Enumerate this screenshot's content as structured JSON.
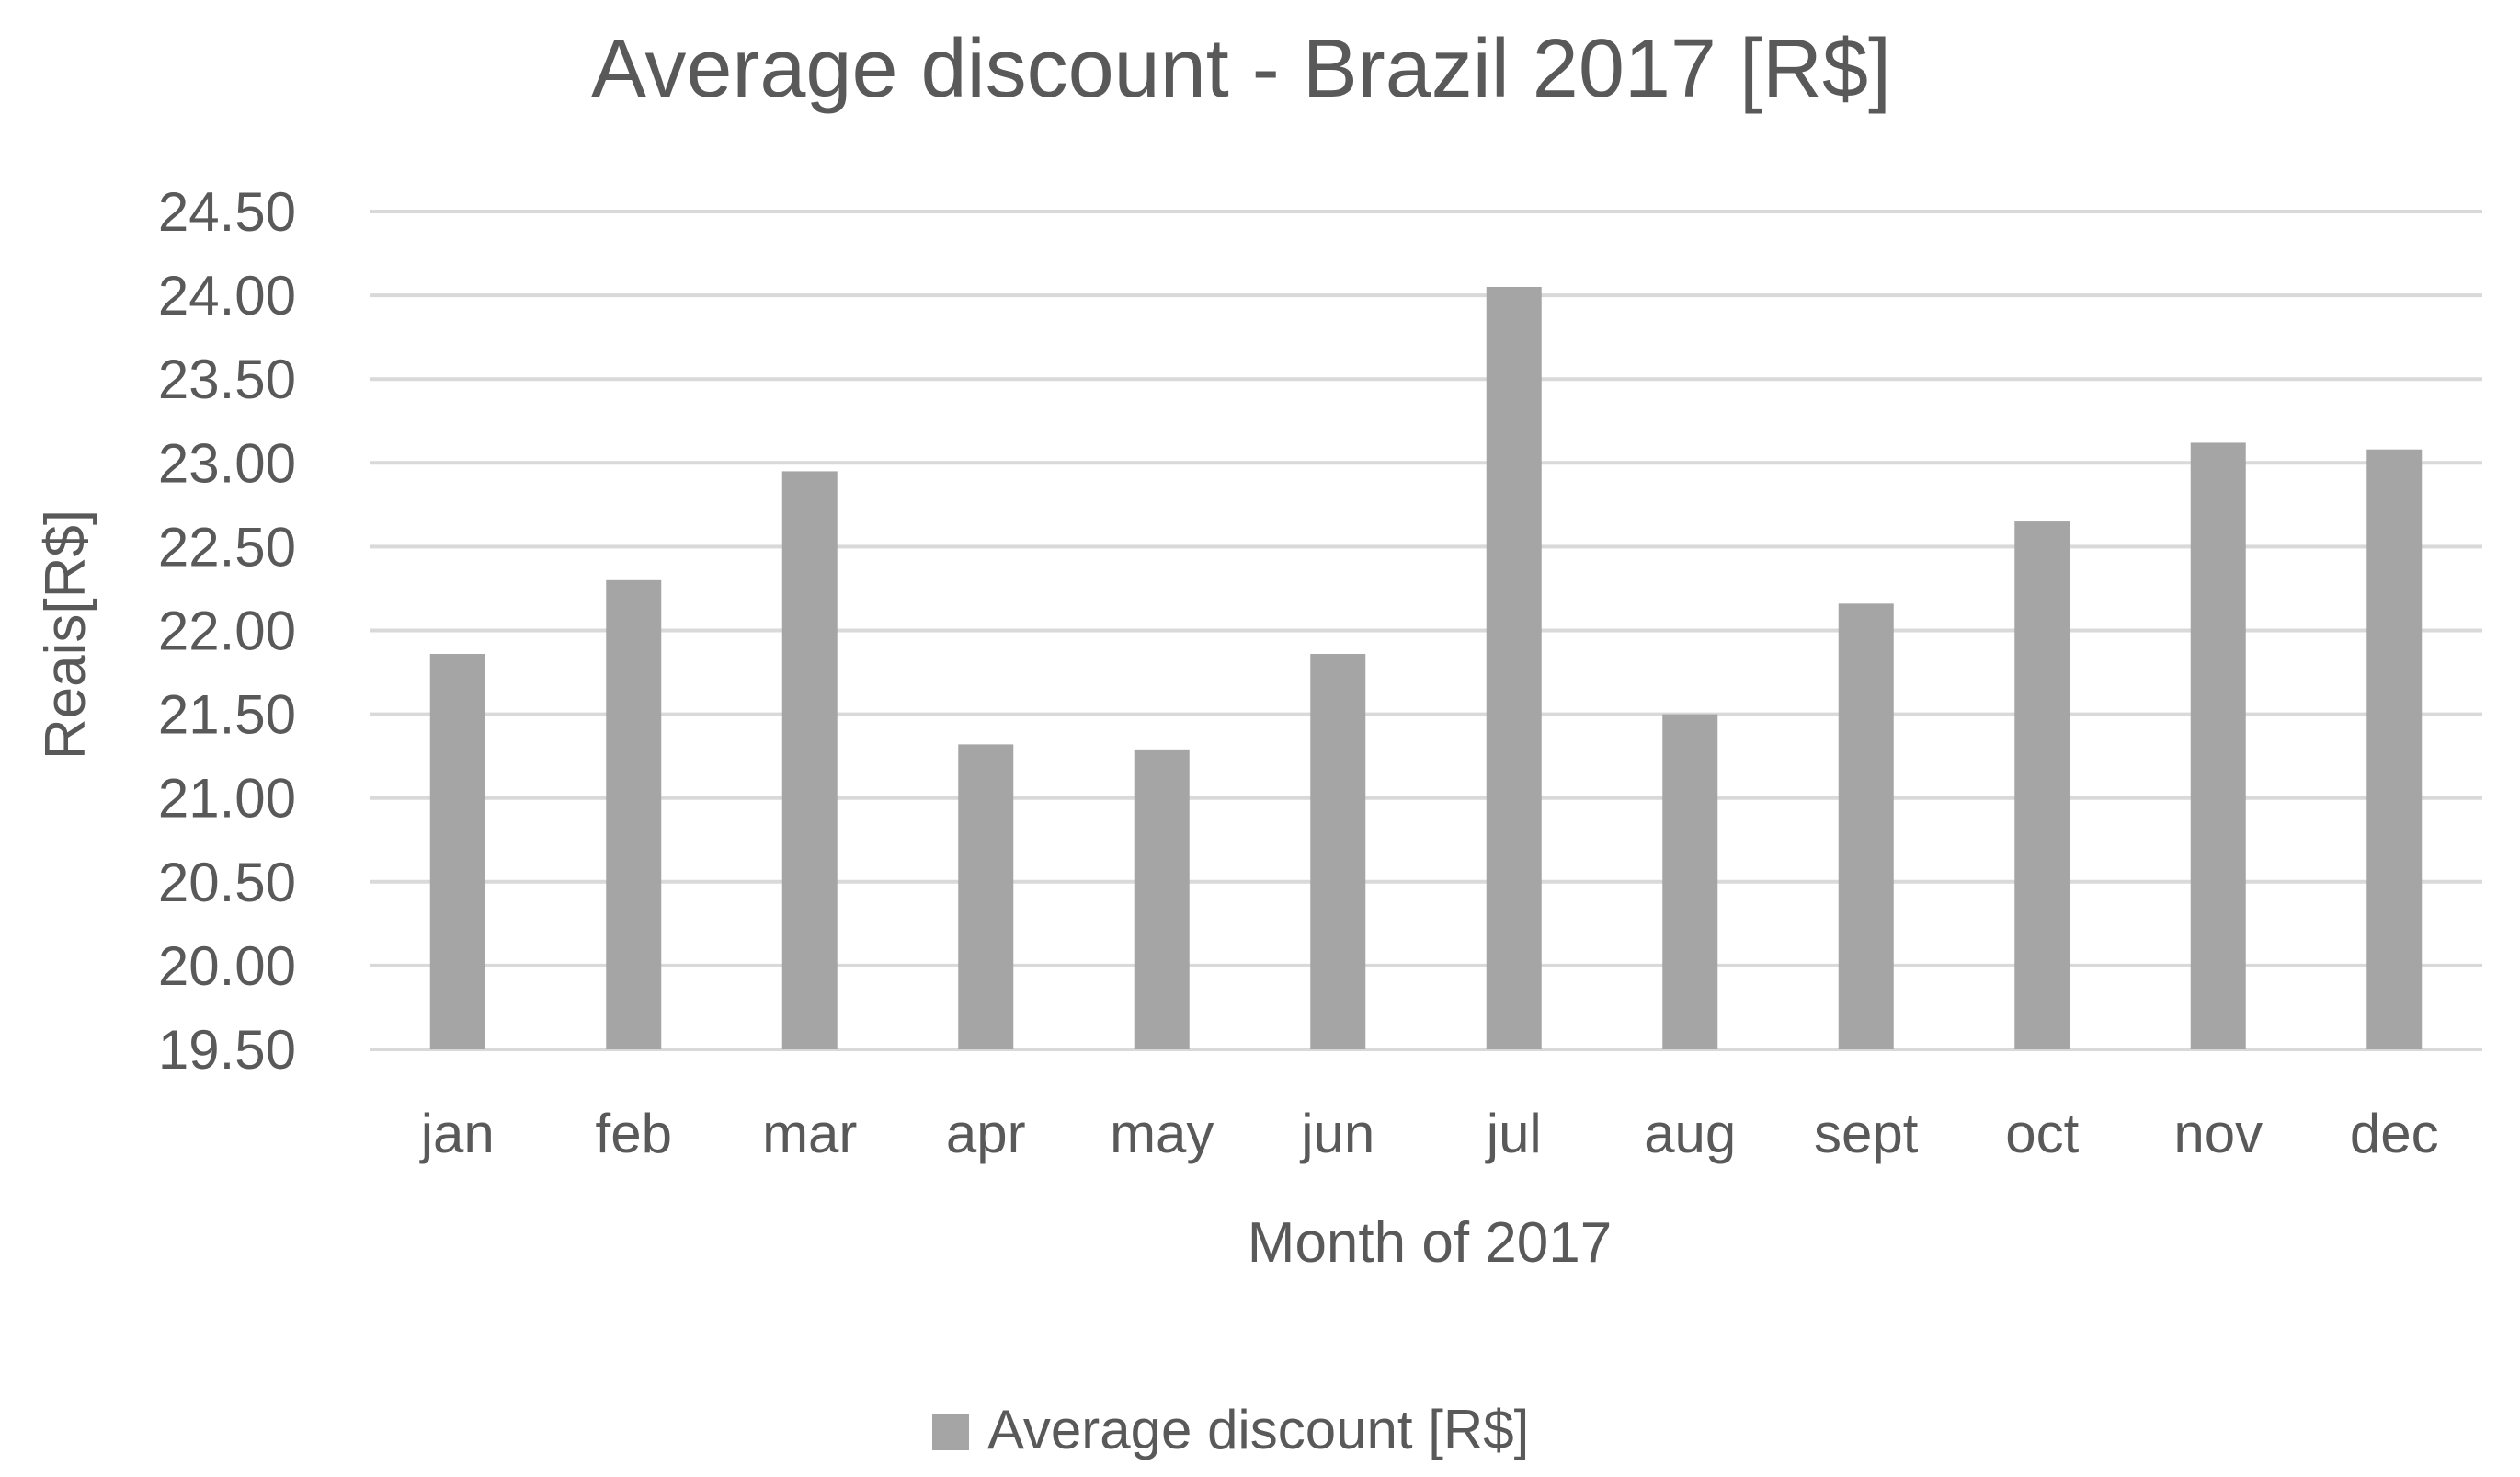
{
  "chart_data": {
    "type": "bar",
    "title": "Average discount - Brazil 2017 [R$]",
    "xlabel": "Month of 2017",
    "ylabel": "Reais[R$]",
    "categories": [
      "jan",
      "feb",
      "mar",
      "apr",
      "may",
      "jun",
      "jul",
      "aug",
      "sept",
      "oct",
      "nov",
      "dec"
    ],
    "series": [
      {
        "name": "Average discount  [R$]",
        "color": "#a5a5a5",
        "values": [
          21.86,
          22.3,
          22.95,
          21.32,
          21.29,
          21.86,
          24.05,
          21.5,
          22.16,
          22.65,
          23.12,
          23.08
        ]
      }
    ],
    "ylim": [
      19.5,
      24.5
    ],
    "yticks": [
      "19.50",
      "20.00",
      "20.50",
      "21.00",
      "21.50",
      "22.00",
      "22.50",
      "23.00",
      "23.50",
      "24.00",
      "24.50"
    ],
    "grid": true,
    "gridline_color": "#d9d9d9",
    "text_color": "#595959",
    "legend_position": "bottom"
  }
}
